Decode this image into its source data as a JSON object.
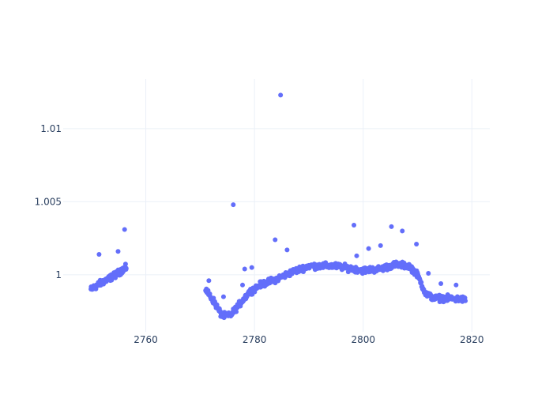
{
  "chart_data": {
    "type": "scatter",
    "title": "",
    "xlabel": "",
    "ylabel": "",
    "xlim": [
      2744.8,
      2823.3
    ],
    "ylim": [
      0.9961,
      1.0134
    ],
    "x_ticks": [
      2760,
      2780,
      2800,
      2820
    ],
    "x_tick_labels": [
      "2760",
      "2780",
      "2800",
      "2820"
    ],
    "y_ticks": [
      1.0,
      1.005,
      1.01
    ],
    "y_tick_labels": [
      "1",
      "1.005",
      "1.01"
    ],
    "grid": true,
    "marker_color": "#636efa",
    "series": [
      {
        "segments": [
          {
            "x_start": 2749.9,
            "x_end": 2756.4,
            "trend": [
              [
                2749.9,
                0.999
              ],
              [
                2752.0,
                0.9995
              ],
              [
                2754.0,
                0.9999
              ],
              [
                2756.4,
                1.0005
              ]
            ],
            "spread": 0.0003,
            "n": 150
          },
          {
            "x_start": 2771.0,
            "x_end": 2818.8,
            "trend": [
              [
                2771.0,
                0.999
              ],
              [
                2772.5,
                0.9982
              ],
              [
                2774.0,
                0.9972
              ],
              [
                2775.5,
                0.9972
              ],
              [
                2777.5,
                0.9981
              ],
              [
                2779.0,
                0.9988
              ],
              [
                2781.0,
                0.9993
              ],
              [
                2784.0,
                0.9997
              ],
              [
                2787.0,
                1.0002
              ],
              [
                2790.0,
                1.0006
              ],
              [
                2795.0,
                1.0006
              ],
              [
                2800.0,
                1.0003
              ],
              [
                2803.0,
                1.0004
              ],
              [
                2806.0,
                1.0007
              ],
              [
                2808.5,
                1.0006
              ],
              [
                2810.0,
                1.0
              ],
              [
                2811.5,
                0.9987
              ],
              [
                2813.0,
                0.9984
              ],
              [
                2815.0,
                0.9984
              ],
              [
                2818.8,
                0.9983
              ]
            ],
            "spread": 0.0003,
            "n": 620
          }
        ],
        "outliers": [
          {
            "x": 2784.8,
            "y": 1.0123
          },
          {
            "x": 2776.1,
            "y": 1.0048
          },
          {
            "x": 2798.3,
            "y": 1.0034
          },
          {
            "x": 2805.2,
            "y": 1.0033
          },
          {
            "x": 2807.2,
            "y": 1.003
          },
          {
            "x": 2756.1,
            "y": 1.0031
          },
          {
            "x": 2783.8,
            "y": 1.0024
          },
          {
            "x": 2803.2,
            "y": 1.002
          },
          {
            "x": 2809.8,
            "y": 1.0021
          },
          {
            "x": 2801.0,
            "y": 1.0018
          },
          {
            "x": 2786.0,
            "y": 1.0017
          },
          {
            "x": 2754.9,
            "y": 1.0016
          },
          {
            "x": 2751.4,
            "y": 1.0014
          },
          {
            "x": 2798.8,
            "y": 1.0013
          },
          {
            "x": 2778.2,
            "y": 1.0004
          },
          {
            "x": 2779.5,
            "y": 1.0005
          },
          {
            "x": 2812.0,
            "y": 1.0001
          },
          {
            "x": 2814.3,
            "y": 0.9994
          },
          {
            "x": 2817.1,
            "y": 0.9993
          },
          {
            "x": 2771.6,
            "y": 0.9996
          },
          {
            "x": 2774.3,
            "y": 0.9985
          },
          {
            "x": 2777.8,
            "y": 0.9993
          }
        ]
      }
    ]
  }
}
